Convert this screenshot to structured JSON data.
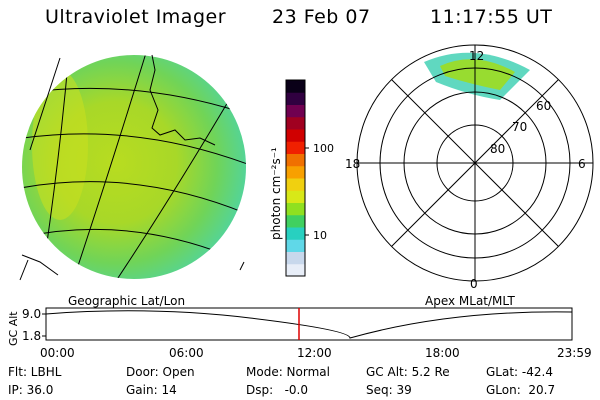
{
  "header": {
    "instrument": "Ultraviolet Imager",
    "date": "23 Feb 07",
    "time": "11:17:55 UT"
  },
  "colorbar": {
    "unit_label": "photon cm⁻²s⁻¹",
    "ticks": [
      {
        "label": "100",
        "value": 100
      },
      {
        "label": "10",
        "value": 10
      }
    ],
    "colors": [
      "#e8eef8",
      "#c8d8ec",
      "#60d8e8",
      "#28d0c0",
      "#40d060",
      "#90e020",
      "#d8e818",
      "#f0d010",
      "#f8a000",
      "#f07000",
      "#f02000",
      "#d00000",
      "#a00020",
      "#700050",
      "#300040",
      "#0a0018"
    ]
  },
  "geo_panel": {
    "label": "Geographic Lat/Lon"
  },
  "polar_panel": {
    "label": "Apex MLat/MLT",
    "mlt_labels": {
      "top": "12",
      "left": "18",
      "right": "6",
      "bottom": "0"
    },
    "lat_labels": [
      "60",
      "70",
      "80"
    ]
  },
  "altitude_plot": {
    "ylabel": "GC Alt",
    "y_ticks": [
      "9.0",
      "1.8"
    ],
    "x_ticks": [
      "00:00",
      "06:00",
      "12:00",
      "18:00",
      "23:59"
    ],
    "current_time_color": "#dd0000"
  },
  "status": {
    "flt": "Flt: LBHL",
    "ip": "IP: 36.0",
    "door": "Door: Open",
    "gain": "Gain: 14",
    "mode": "Mode: Normal",
    "dsp": "Dsp:   -0.0",
    "gc_alt": "GC Alt: 5.2 Re",
    "seq": "Seq: 39",
    "glat": "GLat: -42.4",
    "glon": "GLon:  20.7"
  }
}
